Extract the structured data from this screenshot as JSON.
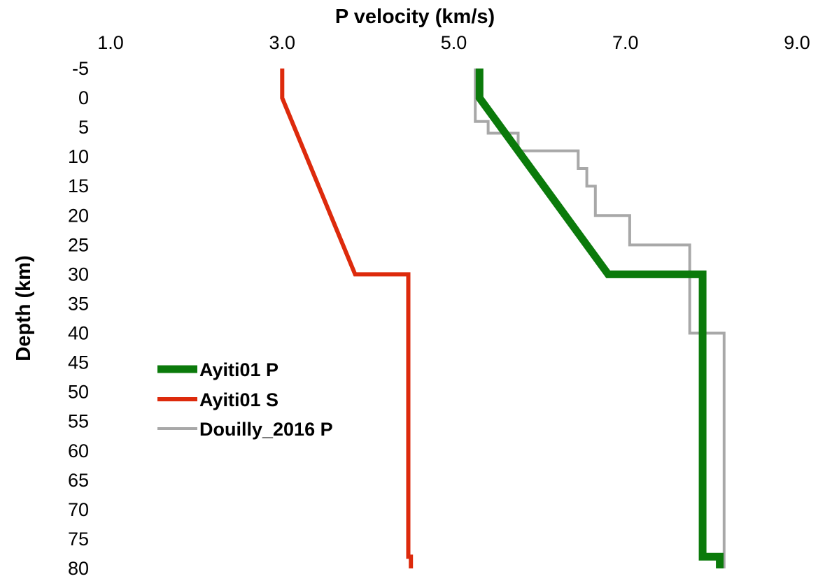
{
  "chart_data": {
    "type": "line",
    "xlabel": "P velocity (km/s)",
    "ylabel": "Depth (km)",
    "xlim": [
      1.0,
      9.0
    ],
    "ylim": [
      -5,
      80
    ],
    "y_inverted": true,
    "x_axis_position": "top",
    "x_ticks": [
      1.0,
      3.0,
      5.0,
      7.0,
      9.0
    ],
    "x_tick_labels": [
      "1.0",
      "3.0",
      "5.0",
      "7.0",
      "9.0"
    ],
    "y_ticks": [
      -5,
      0,
      5,
      10,
      15,
      20,
      25,
      30,
      35,
      40,
      45,
      50,
      55,
      60,
      65,
      70,
      75,
      80
    ],
    "y_tick_labels": [
      "-5",
      "0",
      "5",
      "10",
      "15",
      "20",
      "25",
      "30",
      "35",
      "40",
      "45",
      "50",
      "55",
      "60",
      "65",
      "70",
      "75",
      "80"
    ],
    "grid": false,
    "legend_position": "left-middle",
    "series": [
      {
        "name": "Ayiti01 P",
        "color": "#0b7a0b",
        "points": [
          [
            5.3,
            -5
          ],
          [
            5.3,
            0
          ],
          [
            6.8,
            30
          ],
          [
            7.9,
            30
          ],
          [
            7.9,
            78
          ],
          [
            8.1,
            78
          ],
          [
            8.1,
            80
          ]
        ]
      },
      {
        "name": "Ayiti01 S",
        "color": "#dd2a0c",
        "points": [
          [
            3.0,
            -5
          ],
          [
            3.0,
            0
          ],
          [
            3.85,
            30
          ],
          [
            4.47,
            30
          ],
          [
            4.47,
            78
          ],
          [
            4.5,
            78
          ],
          [
            4.5,
            80
          ]
        ]
      },
      {
        "name": "Douilly_2016 P",
        "color": "#a8a8a8",
        "points": [
          [
            5.25,
            -5
          ],
          [
            5.25,
            4
          ],
          [
            5.4,
            4
          ],
          [
            5.4,
            6
          ],
          [
            5.75,
            6
          ],
          [
            5.75,
            9
          ],
          [
            6.45,
            9
          ],
          [
            6.45,
            12
          ],
          [
            6.55,
            12
          ],
          [
            6.55,
            15
          ],
          [
            6.65,
            15
          ],
          [
            6.65,
            20
          ],
          [
            7.05,
            20
          ],
          [
            7.05,
            25
          ],
          [
            7.75,
            25
          ],
          [
            7.75,
            40
          ],
          [
            8.15,
            40
          ],
          [
            8.15,
            80
          ]
        ]
      }
    ]
  }
}
